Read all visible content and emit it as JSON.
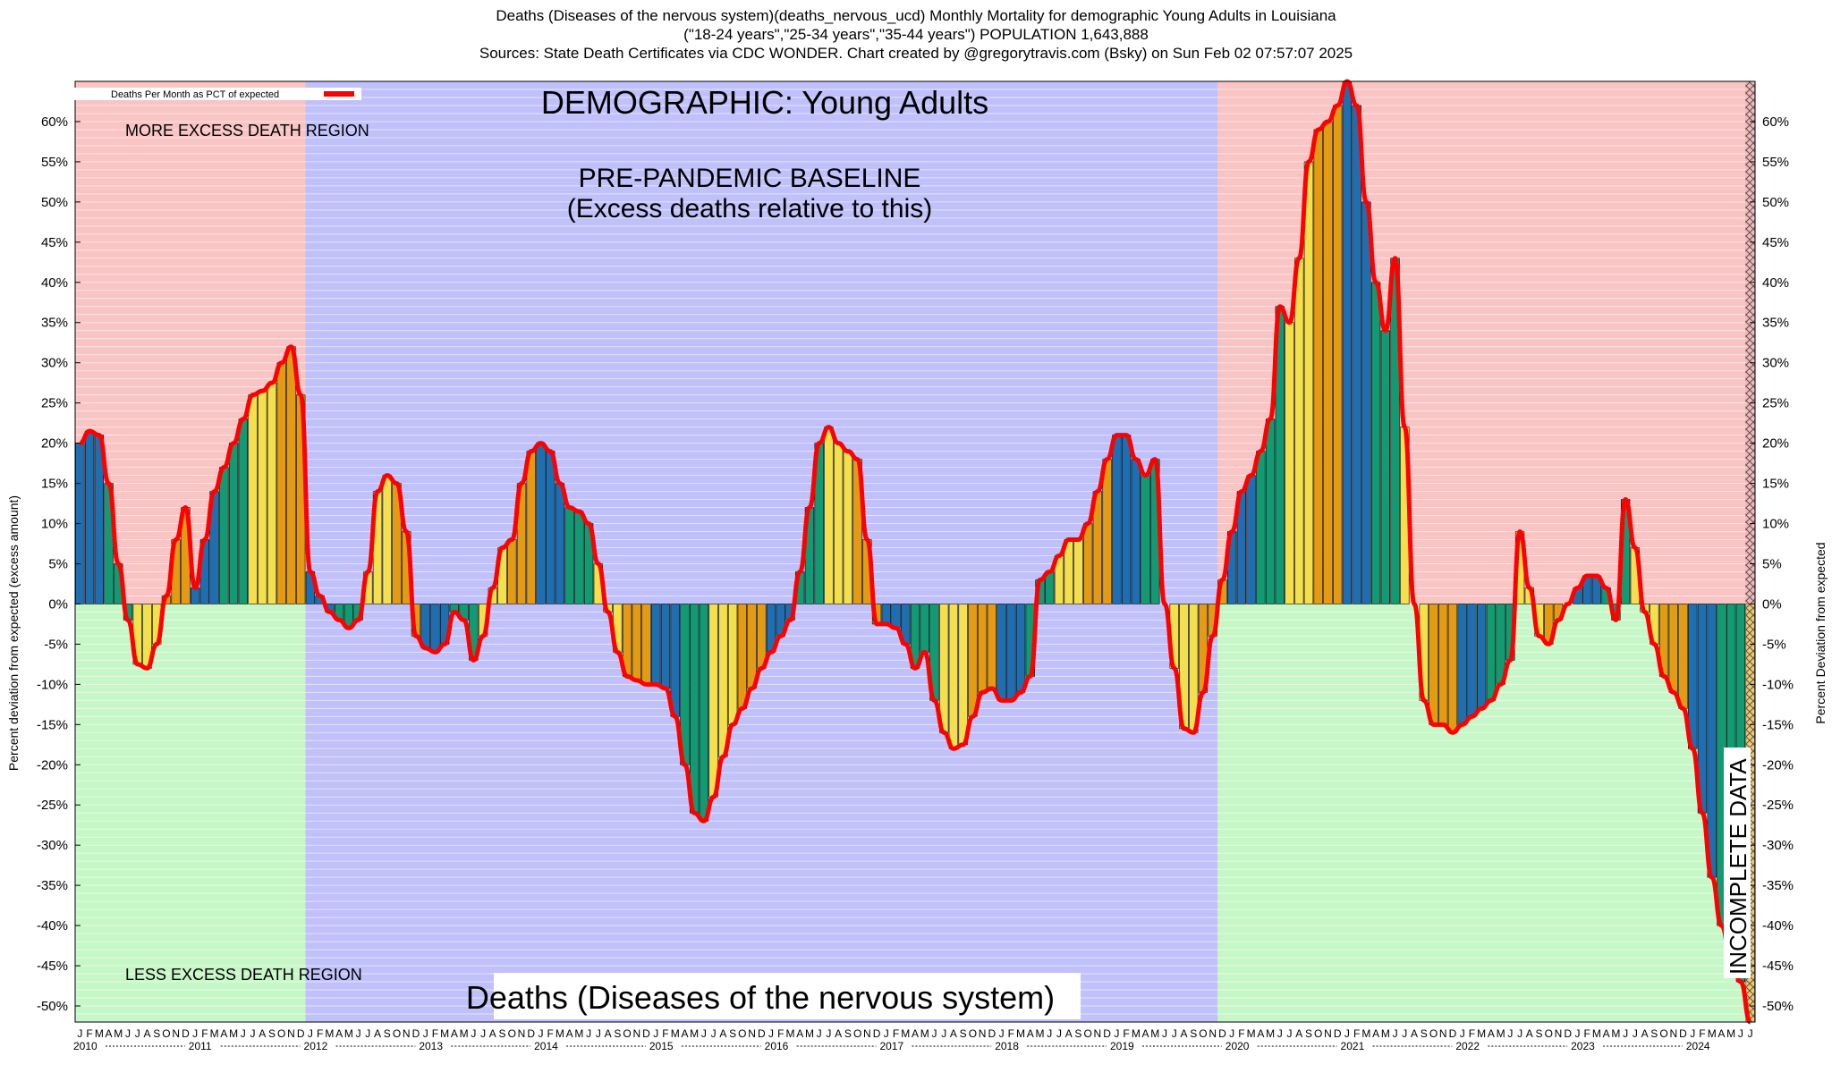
{
  "header": {
    "line1": "Deaths (Diseases of the nervous system)(deaths_nervous_ucd) Monthly Mortality for demographic Young Adults in Louisiana",
    "line2": "(\"18-24 years\",\"25-34 years\",\"35-44 years\") POPULATION 1,643,888",
    "line3": "Sources: State Death Certificates via CDC WONDER.              Chart created by @gregorytravis.com (Bsky) on Sun Feb 02 07:57:07 2025"
  },
  "colors": {
    "more_region": "#f8c4c4",
    "less_region": "#c6f7c6",
    "baseline_region": "#c0c0fb",
    "line": "#ff0000",
    "bar_palette": [
      "#1f6fb0",
      "#129a72",
      "#f3e04c",
      "#e39b14"
    ],
    "hatch": "#b89999"
  },
  "chart_data": {
    "type": "bar",
    "title": "DEMOGRAPHIC: Young Adults",
    "legend": "Deaths Per Month as PCT of expected",
    "ylabel_left": "Percent deviation from expected (excess amount)",
    "ylabel_right": "Percent Deviation from expected",
    "ylim": [
      -52,
      65
    ],
    "yticks": [
      60,
      55,
      50,
      45,
      40,
      35,
      30,
      25,
      20,
      15,
      10,
      5,
      0,
      -5,
      -10,
      -15,
      -20,
      -25,
      -30,
      -35,
      -40,
      -45,
      -50
    ],
    "baseline_label_1": "PRE-PANDEMIC BASELINE",
    "baseline_label_2": "(Excess deaths relative to this)",
    "more_excess_label": "MORE EXCESS DEATH REGION",
    "less_excess_label": "LESS EXCESS DEATH REGION",
    "bottom_title": "Deaths (Diseases of the nervous system)",
    "incomplete_label": "INCOMPLETE DATA",
    "month_letters": [
      "J",
      "F",
      "M",
      "A",
      "M",
      "J",
      "J",
      "A",
      "S",
      "O",
      "N",
      "D"
    ],
    "years": [
      "2010",
      "2011",
      "2012",
      "2013",
      "2014",
      "2015",
      "2016",
      "2017",
      "2018",
      "2019",
      "2020",
      "2021",
      "2022",
      "2023",
      "2024"
    ],
    "baseline_months": {
      "start": 24,
      "end": 119
    },
    "incomplete_from_month": 174,
    "start": "2010-01",
    "values": [
      20,
      21.5,
      21,
      15,
      5,
      -2,
      -7.5,
      -8,
      -5,
      1,
      8,
      12,
      2,
      8,
      14,
      17,
      20,
      23,
      26,
      26.5,
      27.5,
      30,
      32,
      26,
      4,
      1,
      -1,
      -2,
      -3,
      -2,
      4,
      14,
      16,
      15,
      9,
      -4,
      -5.5,
      -6,
      -5,
      -1,
      -2,
      -7,
      -4,
      2,
      7,
      8,
      15,
      19,
      20,
      19,
      15,
      12,
      11.5,
      10,
      5,
      -1,
      -6,
      -9,
      -9.5,
      -10,
      -10,
      -10.5,
      -14,
      -20,
      -26,
      -27,
      -24,
      -19,
      -15,
      -13,
      -10.5,
      -8,
      -6,
      -4,
      -2,
      4,
      12,
      20,
      22,
      20,
      19,
      18,
      8,
      -2.5,
      -2.5,
      -3,
      -5,
      -8,
      -6,
      -12,
      -16,
      -18,
      -17.5,
      -14,
      -11,
      -10.5,
      -12,
      -12,
      -11,
      -9,
      3,
      4,
      6,
      8,
      8,
      10,
      14,
      18,
      21,
      21,
      18,
      16,
      18,
      0,
      -8,
      -15.5,
      -16,
      -11,
      -4,
      3,
      9,
      14,
      16,
      19,
      23,
      37,
      35,
      43,
      55,
      59,
      60,
      62,
      65,
      62,
      50,
      40,
      34,
      43,
      22,
      0,
      -12,
      -15,
      -15,
      -16,
      -15,
      -14,
      -13,
      -12,
      -10,
      -7,
      9,
      2,
      -4,
      -5,
      -2,
      0,
      2,
      3.5,
      3.5,
      2,
      -2,
      13,
      7,
      -1,
      -5,
      -9,
      -11,
      -13,
      -18,
      -26,
      -34,
      -40,
      -44,
      -47,
      -52
    ]
  }
}
